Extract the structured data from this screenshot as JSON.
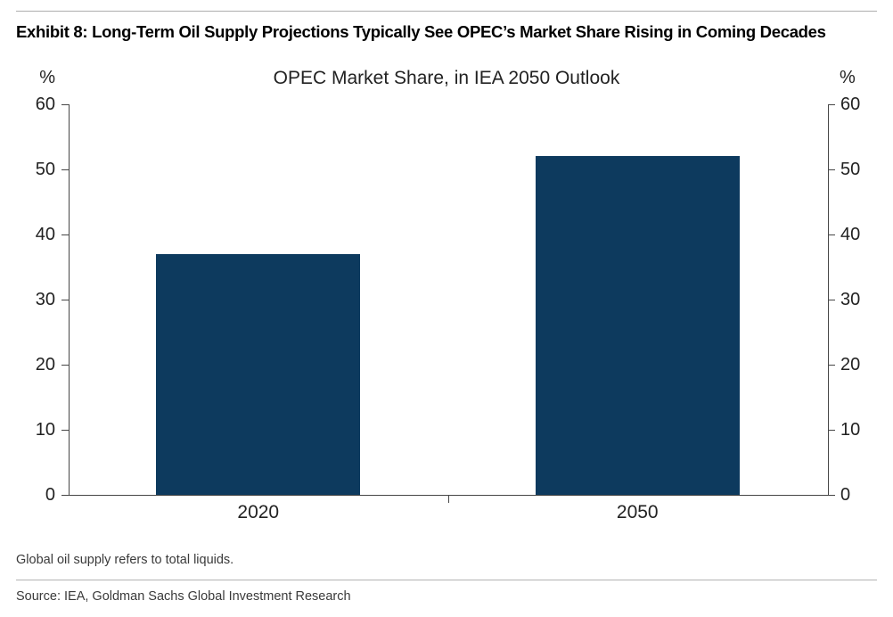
{
  "page": {
    "exhibit_title": "Exhibit 8: Long-Term Oil Supply Projections Typically See OPEC’s Market Share Rising in Coming Decades",
    "footnote": "Global oil supply refers to total liquids.",
    "source": "Source: IEA, Goldman Sachs Global Investment Research"
  },
  "chart_data": {
    "type": "bar",
    "title": "OPEC Market Share, in IEA 2050 Outlook",
    "categories": [
      "2020",
      "2050"
    ],
    "values": [
      37,
      52
    ],
    "xlabel": "",
    "ylabel": "%",
    "ylim": [
      0,
      60
    ],
    "y_ticks": [
      0,
      10,
      20,
      30,
      40,
      50,
      60
    ],
    "bar_color": "#0d3a5e",
    "axis_color": "#464646",
    "legend": "none",
    "grid": false,
    "axis_sides": "left and right"
  }
}
